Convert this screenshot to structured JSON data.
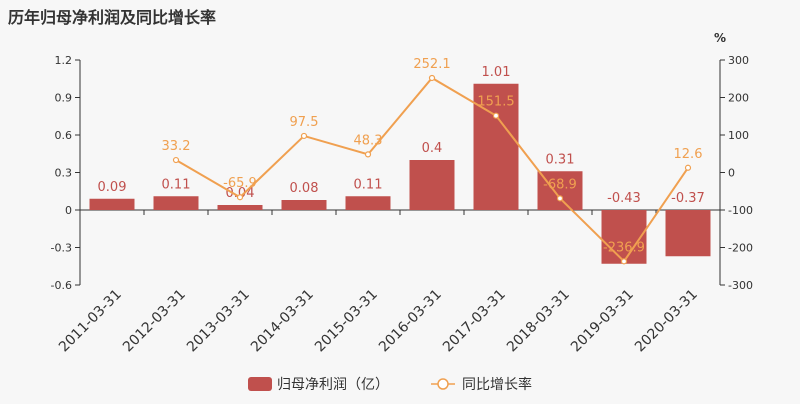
{
  "chart_data": {
    "type": "bar+line",
    "title": "历年归母净利润及同比增长率",
    "categories": [
      "2011-03-31",
      "2012-03-31",
      "2013-03-31",
      "2014-03-31",
      "2015-03-31",
      "2016-03-31",
      "2017-03-31",
      "2018-03-31",
      "2019-03-31",
      "2020-03-31"
    ],
    "series": [
      {
        "name": "归母净利润（亿）",
        "type": "bar",
        "axis": "left",
        "values": [
          0.09,
          0.11,
          0.04,
          0.08,
          0.11,
          0.4,
          1.01,
          0.31,
          -0.43,
          -0.37
        ],
        "labels": [
          "0.09",
          "0.11",
          "0.04",
          "0.08",
          "0.11",
          "0.4",
          "1.01",
          "0.31",
          "-0.43",
          "-0.37"
        ],
        "color": "#c0504d"
      },
      {
        "name": "同比增长率",
        "type": "line",
        "axis": "right",
        "values": [
          null,
          33.2,
          -65.9,
          97.5,
          48.3,
          252.1,
          151.5,
          -68.9,
          -236.9,
          12.6
        ],
        "labels": [
          "",
          "33.2",
          "-65.9",
          "97.5",
          "48.3",
          "252.1",
          "151.5",
          "-68.9",
          "-236.9",
          "12.6"
        ],
        "color": "#f0a050"
      }
    ],
    "left_axis": {
      "ylim": [
        -0.6,
        1.2
      ],
      "ticks": [
        -0.6,
        -0.3,
        0,
        0.3,
        0.6,
        0.9,
        1.2
      ],
      "tick_labels": [
        "-0.6",
        "-0.3",
        "0",
        "0.3",
        "0.6",
        "0.9",
        "1.2"
      ]
    },
    "right_axis": {
      "unit": "%",
      "ylim": [
        -300,
        300
      ],
      "ticks": [
        -300,
        -200,
        -100,
        0,
        100,
        200,
        300
      ],
      "tick_labels": [
        "-300",
        "-200",
        "-100",
        "0",
        "100",
        "200",
        "300"
      ]
    },
    "grid": false,
    "legend": "bottom-center",
    "colors": {
      "text": "#333333",
      "axis": "#333333",
      "label_bar": "#c0504d",
      "label_line": "#f0a050"
    }
  }
}
